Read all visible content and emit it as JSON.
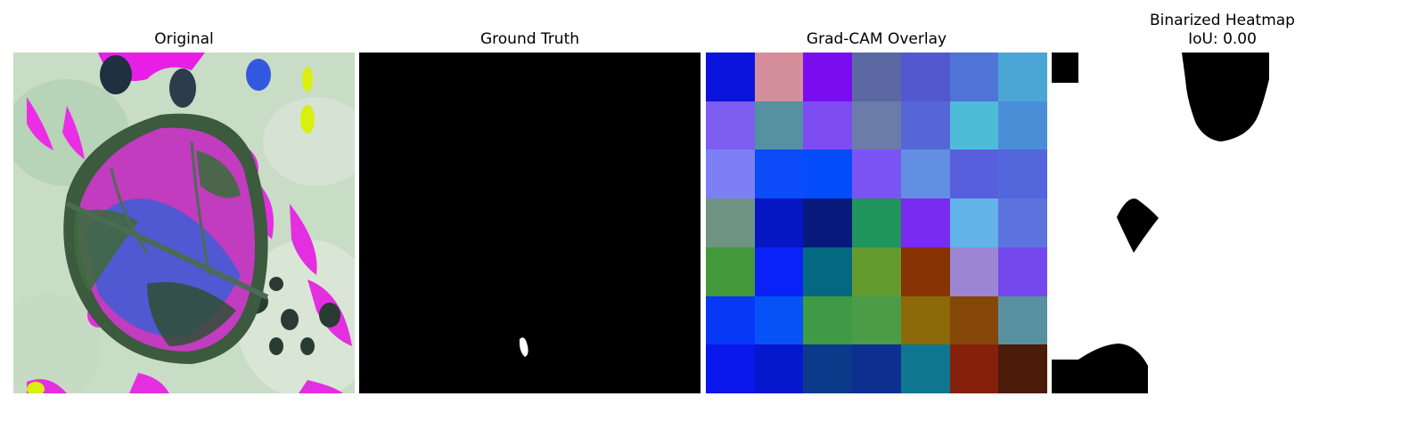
{
  "panels": [
    {
      "title": "Original"
    },
    {
      "title": "Ground Truth"
    },
    {
      "title": "Grad-CAM Overlay"
    },
    {
      "title_line1": "Binarized Heatmap",
      "title_line2": "IoU: 0.00"
    }
  ],
  "gradcam_cells": [
    [
      "#0a14dc",
      "#d38e99",
      "#7a0cf0",
      "#5b68a2",
      "#5458cf",
      "#4f73d6",
      "#4ba6d6"
    ],
    [
      "#7d5ef0",
      "#5591a0",
      "#7f4cf1",
      "#6b7ca9",
      "#5566d8",
      "#4fbcd7",
      "#4a8ed8"
    ],
    [
      "#7d80f5",
      "#0b4cf8",
      "#054cfa",
      "#7c54f5",
      "#628fe2",
      "#575fdc",
      "#5466dc"
    ],
    [
      "#6f9483",
      "#0516c2",
      "#071a7b",
      "#1f945b",
      "#7a2bf0",
      "#63b3eb",
      "#5c73de"
    ],
    [
      "#439839",
      "#0a22f8",
      "#046980",
      "#649b2e",
      "#883304",
      "#9c86d3",
      "#7548ed"
    ],
    [
      "#0638f6",
      "#0652f6",
      "#3f9a46",
      "#4b9c46",
      "#8c6a09",
      "#854707",
      "#5791a0"
    ],
    [
      "#0a18ee",
      "#0618cc",
      "#0c3a8a",
      "#0d2f8f",
      "#0e768e",
      "#85200b",
      "#4d1b0a"
    ]
  ]
}
